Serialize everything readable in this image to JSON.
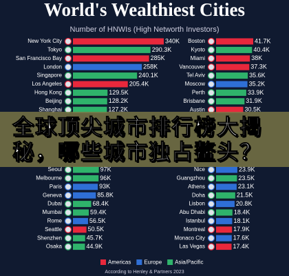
{
  "title": "World's Wealthiest Cities",
  "subtitle": "Number of HNWIs (High Networth Investors)",
  "chart_data": [
    {
      "type": "bar",
      "orientation": "horizontal",
      "categories": [
        "New York City",
        "Tokyo",
        "San Francisco Bay",
        "London",
        "Singapore",
        "Los Angeles",
        "Hong Kong",
        "Beijing",
        "Shanghai",
        null,
        null,
        null,
        null,
        null,
        null,
        "Seoul",
        "Melbourne",
        "Paris",
        "Geneva",
        "Dubai",
        "Mumbai",
        "Rome",
        "Seattle",
        "Shenzhen",
        "Osaka"
      ],
      "values": [
        340,
        290.3,
        285,
        258,
        240.1,
        205.4,
        129.5,
        128.2,
        127.2,
        null,
        null,
        null,
        null,
        null,
        null,
        97,
        96,
        93,
        85.8,
        68.4,
        59.4,
        56.5,
        50.5,
        45.7,
        44.9
      ],
      "value_labels": [
        "340K",
        "290.3K",
        "285K",
        "258K",
        "240.1K",
        "205.4K",
        "129.5K",
        "128.2K",
        "127.2K",
        null,
        null,
        null,
        null,
        null,
        null,
        "97K",
        "96K",
        "93K",
        "85.8K",
        "68.4K",
        "59.4K",
        "56.5K",
        "50.5K",
        "45.7K",
        "44.9K"
      ],
      "colors": [
        "#e8283c",
        "#2fb36b",
        "#e8283c",
        "#2f6fd6",
        "#2fb36b",
        "#e8283c",
        "#2fb36b",
        "#2fb36b",
        "#2fb36b",
        null,
        null,
        null,
        null,
        null,
        null,
        "#2fb36b",
        "#2fb36b",
        "#2f6fd6",
        "#2f6fd6",
        "#2fb36b",
        "#2fb36b",
        "#2f6fd6",
        "#e8283c",
        "#2fb36b",
        "#2fb36b"
      ]
    },
    {
      "type": "bar",
      "orientation": "horizontal",
      "categories": [
        "Boston",
        "Kyoto",
        "Miami",
        "Vancouver",
        "Tel Aviv",
        "Moscow",
        "Perth",
        "Brisbane",
        "Austin",
        null,
        null,
        null,
        null,
        null,
        null,
        "Nice",
        "Guangzhou",
        "Athens",
        "Doha",
        "Lisbon",
        "Abu Dhabi",
        "Istanbul",
        "Montreal",
        "Monaco City",
        "Las Vegas"
      ],
      "values": [
        41.7,
        40.4,
        38,
        37.3,
        35.6,
        35.2,
        33.9,
        31.9,
        30.5,
        null,
        null,
        null,
        null,
        null,
        null,
        23.9,
        23.5,
        23.1,
        21.5,
        20.8,
        18.4,
        18.1,
        17.9,
        17.6,
        17.4
      ],
      "value_labels": [
        "41.7K",
        "40.4K",
        "38K",
        "37.3K",
        "35.6K",
        "35.2K",
        "33.9K",
        "31.9K",
        "30.5K",
        null,
        null,
        null,
        null,
        null,
        null,
        "23.9K",
        "23.5K",
        "23.1K",
        "21.5K",
        "20.8K",
        "18.4K",
        "18.1K",
        "17.9K",
        "17.6K",
        "17.4K"
      ],
      "colors": [
        "#e8283c",
        "#2fb36b",
        "#e8283c",
        "#e8283c",
        "#2fb36b",
        "#2f6fd6",
        "#2fb36b",
        "#2fb36b",
        "#e8283c",
        null,
        null,
        null,
        null,
        null,
        null,
        "#2f6fd6",
        "#2fb36b",
        "#2f6fd6",
        "#2fb36b",
        "#2f6fd6",
        "#2fb36b",
        "#2f6fd6",
        "#e8283c",
        "#2f6fd6",
        "#e8283c"
      ]
    }
  ],
  "legend": [
    {
      "name": "Americas",
      "color": "#e8283c"
    },
    {
      "name": "Europe",
      "color": "#2f6fd6"
    },
    {
      "name": "Asia/Pacific",
      "color": "#2fb36b"
    }
  ],
  "source": "According to Henley & Partners 2023",
  "banner": "全球顶尖城市排行榜大揭秘，哪些城市独占鳌头？"
}
